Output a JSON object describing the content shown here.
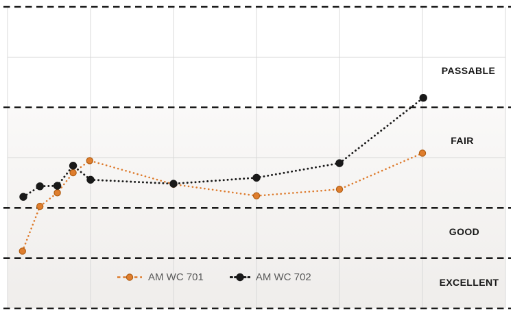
{
  "band_labels": {
    "passable": "PASSABLE",
    "fair": "FAIR",
    "good": "GOOD",
    "excellent": "EXCELLENT"
  },
  "legend": {
    "items": [
      {
        "label": "AM WC 701",
        "color": "#DD7A2B",
        "marker_fill": "#DF7E2E",
        "marker_stroke": "#B05E14"
      },
      {
        "label": "AM WC 702",
        "color": "#1A1A1A",
        "marker_fill": "#191919",
        "marker_stroke": "#191919"
      }
    ]
  },
  "colors": {
    "gridline": "#D8D8D8",
    "dashed_line": "#1A1A1A",
    "band_fill_top": "#FAF9F8",
    "band_fill_bottom": "#EFEDEB",
    "background": "#FFFFFF",
    "label_text": "#161616",
    "legend_text": "#595959"
  },
  "chart_data": {
    "type": "line",
    "title": "",
    "xlabel": "",
    "ylabel": "",
    "x_tick_labels_visible": false,
    "y_tick_labels_visible": false,
    "legend_position": "bottom",
    "grid": {
      "columns": 6,
      "rows": 6,
      "dashed_rows": [
        0,
        2,
        4,
        5,
        6
      ],
      "solid_rows": [
        1,
        3
      ]
    },
    "y_axis_bands_top_to_bottom": [
      {
        "label": "PASSABLE",
        "from_row": 0,
        "to_row": 2
      },
      {
        "label": "FAIR",
        "from_row": 2,
        "to_row": 4
      },
      {
        "label": "GOOD",
        "from_row": 4,
        "to_row": 5
      },
      {
        "label": "EXCELLENT",
        "from_row": 5,
        "to_row": 6
      }
    ],
    "shaded_region_rows": [
      2,
      6
    ],
    "units_note": "x in gridline-column units (0-6), y in grid-row units from top (0-6); no numeric axis labels are shown in the chart",
    "series": [
      {
        "name": "AM WC 701",
        "color": "#DD7A2B",
        "line_style": "dotted",
        "marker": "circle",
        "points": [
          [
            0.18,
            4.86
          ],
          [
            0.39,
            3.97
          ],
          [
            0.6,
            3.7
          ],
          [
            0.79,
            3.3
          ],
          [
            0.99,
            3.06
          ],
          [
            2.0,
            3.53
          ],
          [
            3.0,
            3.76
          ],
          [
            4.0,
            3.63
          ],
          [
            5.0,
            2.91
          ]
        ]
      },
      {
        "name": "AM WC 702",
        "color": "#1A1A1A",
        "line_style": "dotted",
        "marker": "circle",
        "points": [
          [
            0.19,
            3.78
          ],
          [
            0.39,
            3.57
          ],
          [
            0.6,
            3.56
          ],
          [
            0.79,
            3.16
          ],
          [
            1.0,
            3.44
          ],
          [
            2.0,
            3.52
          ],
          [
            3.0,
            3.4
          ],
          [
            4.0,
            3.11
          ],
          [
            5.01,
            1.81
          ]
        ]
      }
    ]
  }
}
